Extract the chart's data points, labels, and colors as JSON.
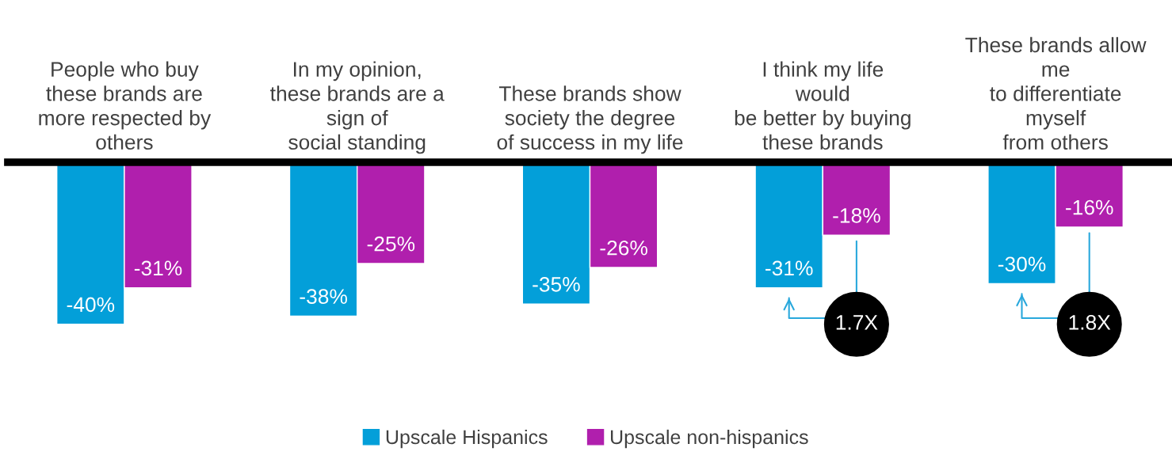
{
  "chart_data": {
    "type": "bar",
    "categories": [
      "People who buy\nthese brands are\nmore respected by\nothers",
      "In my opinion,\nthese brands are a\nsign of\nsocial standing",
      "These brands show\nsociety the degree\nof success in my life",
      "I think my life\nwould\nbe better by buying\nthese brands",
      "These brands allow\nme\nto differentiate\nmyself\nfrom others"
    ],
    "series": [
      {
        "name": "Upscale Hispanics",
        "color": "#039fd9",
        "values": [
          -40,
          -38,
          -35,
          -31,
          -30
        ],
        "value_labels": [
          "-40%",
          "-38%",
          "-35%",
          "-31%",
          "-30%"
        ]
      },
      {
        "name": "Upscale non-hispanics",
        "color": "#b01fad",
        "values": [
          -31,
          -25,
          -26,
          -18,
          -16
        ],
        "value_labels": [
          "-31%",
          "-25%",
          "-26%",
          "-18%",
          "-16%"
        ]
      }
    ],
    "legend": "bottom",
    "annotations": [
      "1.7X",
      "1.8X"
    ]
  }
}
